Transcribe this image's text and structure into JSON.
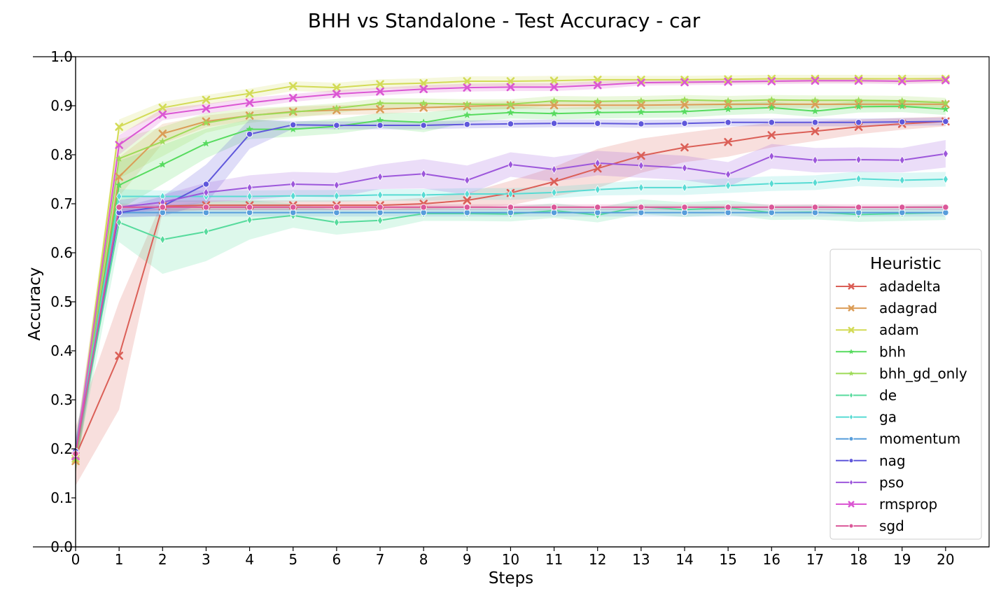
{
  "chart_data": {
    "type": "line",
    "title": "BHH vs Standalone - Test Accuracy - car",
    "xlabel": "Steps",
    "ylabel": "Accuracy",
    "xlim": [
      0,
      21
    ],
    "ylim": [
      0.0,
      1.0
    ],
    "x": [
      0,
      1,
      2,
      3,
      4,
      5,
      6,
      7,
      8,
      9,
      10,
      11,
      12,
      13,
      14,
      15,
      16,
      17,
      18,
      19,
      20
    ],
    "x_ticks": [
      "0",
      "1",
      "2",
      "3",
      "4",
      "5",
      "6",
      "7",
      "8",
      "9",
      "10",
      "11",
      "12",
      "13",
      "14",
      "15",
      "16",
      "17",
      "18",
      "19",
      "20"
    ],
    "y_ticks": [
      "0.0",
      "0.1",
      "0.2",
      "0.3",
      "0.4",
      "0.5",
      "0.6",
      "0.7",
      "0.8",
      "0.9",
      "1.0"
    ],
    "grid": false,
    "legend_title": "Heuristic",
    "legend_position": "lower-right",
    "series": [
      {
        "name": "adadelta",
        "color": "#db5f57",
        "marker": "x",
        "values": [
          0.185,
          0.39,
          0.695,
          0.697,
          0.697,
          0.697,
          0.697,
          0.697,
          0.7,
          0.707,
          0.722,
          0.745,
          0.772,
          0.798,
          0.815,
          0.826,
          0.84,
          0.848,
          0.857,
          0.863,
          0.868
        ],
        "band": [
          0.06,
          0.11,
          0.012,
          0.01,
          0.01,
          0.01,
          0.01,
          0.01,
          0.012,
          0.015,
          0.025,
          0.03,
          0.04,
          0.035,
          0.03,
          0.03,
          0.025,
          0.02,
          0.015,
          0.012,
          0.01
        ]
      },
      {
        "name": "adagrad",
        "color": "#db9d57",
        "marker": "x",
        "values": [
          0.175,
          0.755,
          0.843,
          0.868,
          0.88,
          0.888,
          0.891,
          0.893,
          0.896,
          0.899,
          0.901,
          0.901,
          0.901,
          0.901,
          0.902,
          0.903,
          0.903,
          0.903,
          0.903,
          0.903,
          0.903
        ],
        "band": [
          0.03,
          0.04,
          0.02,
          0.012,
          0.01,
          0.01,
          0.01,
          0.01,
          0.008,
          0.008,
          0.008,
          0.008,
          0.008,
          0.008,
          0.008,
          0.008,
          0.008,
          0.008,
          0.008,
          0.008,
          0.008
        ]
      },
      {
        "name": "adam",
        "color": "#d3db57",
        "marker": "x",
        "values": [
          0.18,
          0.857,
          0.896,
          0.912,
          0.925,
          0.94,
          0.937,
          0.944,
          0.946,
          0.95,
          0.95,
          0.951,
          0.953,
          0.953,
          0.953,
          0.954,
          0.955,
          0.955,
          0.955,
          0.955,
          0.955
        ],
        "band": [
          0.03,
          0.015,
          0.012,
          0.01,
          0.01,
          0.01,
          0.01,
          0.01,
          0.01,
          0.01,
          0.01,
          0.01,
          0.008,
          0.008,
          0.008,
          0.008,
          0.008,
          0.008,
          0.008,
          0.008,
          0.008
        ]
      },
      {
        "name": "bhh",
        "color": "#57db5f",
        "marker": "*",
        "values": [
          0.18,
          0.738,
          0.78,
          0.823,
          0.852,
          0.852,
          0.858,
          0.87,
          0.866,
          0.881,
          0.886,
          0.884,
          0.886,
          0.887,
          0.888,
          0.893,
          0.896,
          0.889,
          0.898,
          0.899,
          0.893
        ],
        "band": [
          0.03,
          0.05,
          0.04,
          0.03,
          0.02,
          0.015,
          0.015,
          0.015,
          0.02,
          0.015,
          0.012,
          0.012,
          0.012,
          0.012,
          0.012,
          0.012,
          0.012,
          0.012,
          0.012,
          0.012,
          0.012
        ]
      },
      {
        "name": "bhh_gd_only",
        "color": "#9ddb57",
        "marker": "*",
        "values": [
          0.18,
          0.792,
          0.827,
          0.865,
          0.88,
          0.887,
          0.895,
          0.905,
          0.905,
          0.903,
          0.903,
          0.91,
          0.909,
          0.91,
          0.912,
          0.91,
          0.912,
          0.911,
          0.911,
          0.91,
          0.906
        ],
        "band": [
          0.03,
          0.04,
          0.03,
          0.02,
          0.015,
          0.012,
          0.01,
          0.01,
          0.01,
          0.01,
          0.01,
          0.01,
          0.01,
          0.01,
          0.01,
          0.01,
          0.01,
          0.01,
          0.01,
          0.01,
          0.01
        ]
      },
      {
        "name": "de",
        "color": "#57db9d",
        "marker": "d",
        "values": [
          0.19,
          0.662,
          0.627,
          0.643,
          0.667,
          0.676,
          0.662,
          0.666,
          0.68,
          0.68,
          0.679,
          0.686,
          0.677,
          0.694,
          0.688,
          0.692,
          0.682,
          0.683,
          0.678,
          0.68,
          0.682
        ],
        "band": [
          0.03,
          0.04,
          0.07,
          0.06,
          0.04,
          0.025,
          0.025,
          0.02,
          0.015,
          0.015,
          0.015,
          0.015,
          0.015,
          0.015,
          0.015,
          0.015,
          0.015,
          0.015,
          0.015,
          0.015,
          0.015
        ]
      },
      {
        "name": "ga",
        "color": "#57dbd3",
        "marker": "d",
        "values": [
          0.195,
          0.715,
          0.715,
          0.715,
          0.715,
          0.716,
          0.716,
          0.718,
          0.718,
          0.72,
          0.72,
          0.723,
          0.729,
          0.733,
          0.733,
          0.737,
          0.741,
          0.743,
          0.751,
          0.748,
          0.75
        ],
        "band": [
          0.03,
          0.015,
          0.012,
          0.012,
          0.012,
          0.012,
          0.012,
          0.012,
          0.012,
          0.012,
          0.012,
          0.012,
          0.012,
          0.015,
          0.015,
          0.015,
          0.015,
          0.015,
          0.015,
          0.015,
          0.015
        ]
      },
      {
        "name": "momentum",
        "color": "#579ddb",
        "marker": "o",
        "values": [
          0.195,
          0.682,
          0.682,
          0.682,
          0.682,
          0.682,
          0.682,
          0.682,
          0.682,
          0.682,
          0.682,
          0.682,
          0.682,
          0.682,
          0.682,
          0.682,
          0.682,
          0.682,
          0.682,
          0.682,
          0.682
        ],
        "band": [
          0.02,
          0.008,
          0.008,
          0.008,
          0.008,
          0.008,
          0.008,
          0.008,
          0.008,
          0.008,
          0.008,
          0.008,
          0.008,
          0.008,
          0.008,
          0.008,
          0.008,
          0.008,
          0.008,
          0.008,
          0.008
        ]
      },
      {
        "name": "nag",
        "color": "#5f57db",
        "marker": "o",
        "values": [
          0.195,
          0.682,
          0.695,
          0.74,
          0.842,
          0.861,
          0.86,
          0.86,
          0.86,
          0.862,
          0.863,
          0.864,
          0.864,
          0.863,
          0.864,
          0.866,
          0.866,
          0.866,
          0.866,
          0.867,
          0.868
        ],
        "band": [
          0.02,
          0.01,
          0.02,
          0.04,
          0.03,
          0.008,
          0.008,
          0.008,
          0.008,
          0.008,
          0.008,
          0.008,
          0.008,
          0.008,
          0.008,
          0.008,
          0.008,
          0.008,
          0.008,
          0.008,
          0.008
        ]
      },
      {
        "name": "pso",
        "color": "#9d57db",
        "marker": "d",
        "values": [
          0.19,
          0.693,
          0.703,
          0.723,
          0.733,
          0.74,
          0.738,
          0.755,
          0.761,
          0.748,
          0.78,
          0.77,
          0.783,
          0.778,
          0.773,
          0.76,
          0.797,
          0.789,
          0.79,
          0.789,
          0.802
        ],
        "band": [
          0.03,
          0.015,
          0.015,
          0.02,
          0.025,
          0.025,
          0.025,
          0.025,
          0.03,
          0.03,
          0.025,
          0.025,
          0.025,
          0.025,
          0.025,
          0.025,
          0.025,
          0.025,
          0.025,
          0.025,
          0.028
        ]
      },
      {
        "name": "rmsprop",
        "color": "#db57d3",
        "marker": "x",
        "values": [
          0.185,
          0.82,
          0.882,
          0.894,
          0.906,
          0.916,
          0.924,
          0.929,
          0.934,
          0.937,
          0.938,
          0.938,
          0.942,
          0.947,
          0.948,
          0.949,
          0.95,
          0.951,
          0.951,
          0.95,
          0.952
        ],
        "band": [
          0.03,
          0.02,
          0.012,
          0.01,
          0.01,
          0.008,
          0.008,
          0.008,
          0.008,
          0.008,
          0.008,
          0.008,
          0.008,
          0.006,
          0.006,
          0.006,
          0.006,
          0.006,
          0.006,
          0.006,
          0.006
        ]
      },
      {
        "name": "sgd",
        "color": "#db5799",
        "marker": "o",
        "values": [
          0.19,
          0.693,
          0.693,
          0.693,
          0.693,
          0.693,
          0.693,
          0.693,
          0.693,
          0.693,
          0.693,
          0.693,
          0.693,
          0.693,
          0.693,
          0.693,
          0.693,
          0.693,
          0.693,
          0.693,
          0.693
        ],
        "band": [
          0.02,
          0.006,
          0.006,
          0.006,
          0.006,
          0.006,
          0.006,
          0.006,
          0.006,
          0.006,
          0.006,
          0.006,
          0.006,
          0.006,
          0.006,
          0.006,
          0.006,
          0.006,
          0.006,
          0.006,
          0.006
        ]
      }
    ]
  }
}
